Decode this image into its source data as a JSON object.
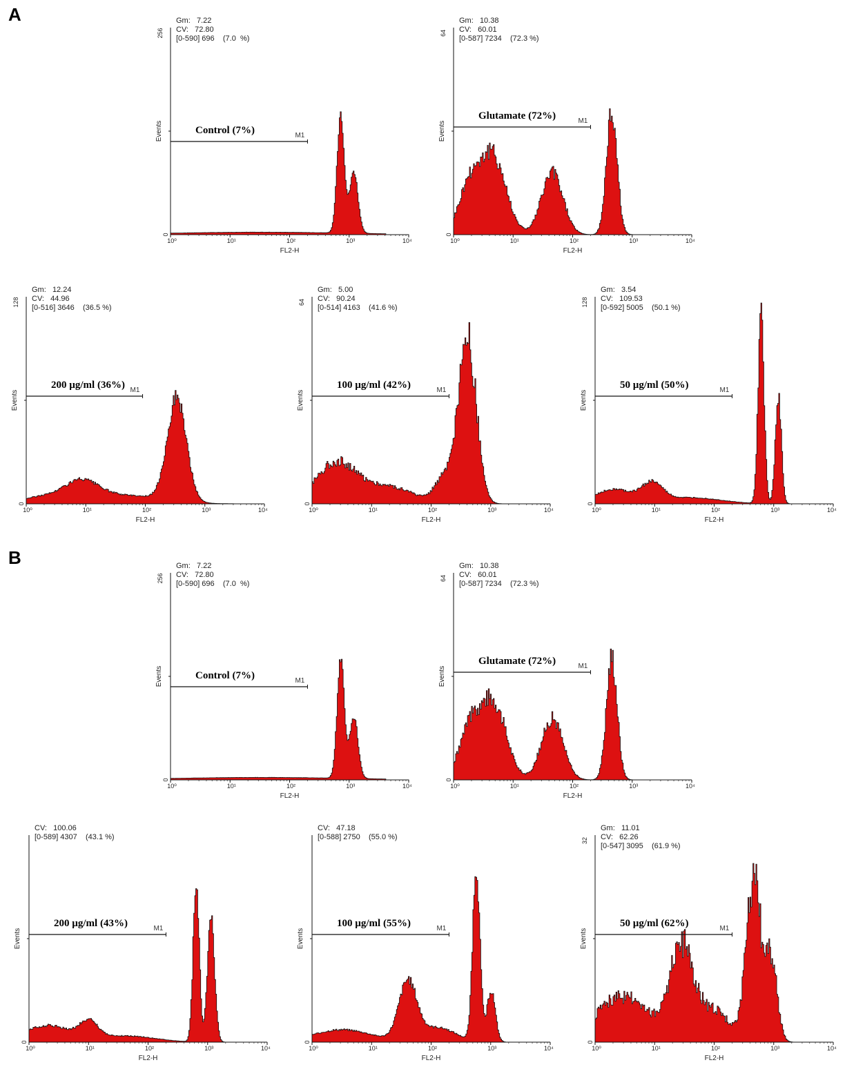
{
  "sections": [
    {
      "label": "A"
    },
    {
      "label": "B"
    }
  ],
  "colors": {
    "fill": "#dd1111",
    "outline": "#111111"
  },
  "chart_data": [
    {
      "type": "area",
      "section": "A",
      "xlabel": "FL2-H",
      "ylabel": "Events",
      "x_scale": "log",
      "xlim": [
        1,
        10000
      ],
      "ylim": [
        0,
        256
      ],
      "y_top_label": "256",
      "y_zero_label": "0",
      "x_ticks": [
        "10⁰",
        "10¹",
        "10²",
        "10³",
        "10⁴"
      ],
      "stats": {
        "gm": "Gm:   7.22",
        "cv": "CV:   72.80",
        "range": "[0-590] 696    (7.0  %)"
      },
      "treatment": "Control (7%)",
      "marker": "M1",
      "marker_range": [
        1,
        200
      ],
      "marker_level": 0.45,
      "peaks": [
        {
          "center": 2.85,
          "width": 0.06,
          "height": 0.58
        },
        {
          "center": 3.07,
          "width": 0.07,
          "height": 0.3
        },
        {
          "center": 1.5,
          "width": 1.5,
          "height": 0.012
        }
      ],
      "noise": 0.04
    },
    {
      "type": "area",
      "section": "A",
      "xlabel": "FL2-H",
      "ylabel": "Events",
      "x_scale": "log",
      "xlim": [
        1,
        10000
      ],
      "ylim": [
        0,
        64
      ],
      "y_top_label": "64",
      "y_zero_label": "0",
      "x_ticks": [
        "10⁰",
        "10¹",
        "10²",
        "10³",
        "10⁴"
      ],
      "stats": {
        "gm": "Gm:   10.38",
        "cv": "CV:   60.01",
        "range": "[0-587] 7234    (72.3 %)"
      },
      "treatment": "Glutamate (72%)",
      "marker": "M1",
      "marker_range": [
        1,
        200
      ],
      "marker_level": 0.52,
      "peaks": [
        {
          "center": 0.25,
          "width": 0.18,
          "height": 0.22
        },
        {
          "center": 0.65,
          "width": 0.22,
          "height": 0.38
        },
        {
          "center": 1.65,
          "width": 0.18,
          "height": 0.3
        },
        {
          "center": 2.65,
          "width": 0.09,
          "height": 0.6
        }
      ],
      "noise": 0.12
    },
    {
      "type": "area",
      "section": "A",
      "xlabel": "FL2-H",
      "ylabel": "Events",
      "x_scale": "log",
      "xlim": [
        1,
        10000
      ],
      "ylim": [
        0,
        128
      ],
      "y_top_label": "128",
      "y_zero_label": "0",
      "x_ticks": [
        "10⁰",
        "10¹",
        "10²",
        "10³",
        "10⁴"
      ],
      "stats": {
        "gm": "Gm:   12.24",
        "cv": "CV:   44.96",
        "range": "[0-516] 3646    (36.5 %)"
      },
      "treatment": "200 µg/ml (36%)",
      "marker": "M1",
      "marker_range": [
        1,
        90
      ],
      "marker_level": 0.52,
      "peaks": [
        {
          "center": 0.9,
          "width": 0.3,
          "height": 0.1
        },
        {
          "center": 1.7,
          "width": 0.6,
          "height": 0.04
        },
        {
          "center": 2.52,
          "width": 0.16,
          "height": 0.5
        },
        {
          "center": 0.2,
          "width": 0.3,
          "height": 0.03
        }
      ],
      "noise": 0.08
    },
    {
      "type": "area",
      "section": "A",
      "xlabel": "FL2-H",
      "ylabel": "Events",
      "x_scale": "log",
      "xlim": [
        1,
        10000
      ],
      "ylim": [
        0,
        64
      ],
      "y_top_label": "64",
      "y_zero_label": "0",
      "x_ticks": [
        "10⁰",
        "10¹",
        "10²",
        "10³",
        "10⁴"
      ],
      "stats": {
        "gm": "Gm:   5.00",
        "cv": "CV:   90.24",
        "range": "[0-514] 4163    (41.6 %)"
      },
      "treatment": "100 µg/ml (42%)",
      "marker": "M1",
      "marker_range": [
        1,
        200
      ],
      "marker_level": 0.52,
      "peaks": [
        {
          "center": 0.4,
          "width": 0.35,
          "height": 0.2
        },
        {
          "center": 1.3,
          "width": 0.4,
          "height": 0.08
        },
        {
          "center": 2.6,
          "width": 0.15,
          "height": 0.8
        },
        {
          "center": 2.2,
          "width": 0.15,
          "height": 0.12
        }
      ],
      "noise": 0.12
    },
    {
      "type": "area",
      "section": "A",
      "xlabel": "FL2-H",
      "ylabel": "Events",
      "x_scale": "log",
      "xlim": [
        1,
        10000
      ],
      "ylim": [
        0,
        128
      ],
      "y_top_label": "128",
      "y_zero_label": "0",
      "x_ticks": [
        "10⁰",
        "10¹",
        "10²",
        "10³",
        "10⁴"
      ],
      "stats": {
        "gm": "Gm:   3.54",
        "cv": "CV:   109.53",
        "range": "[0-592] 5005    (50.1 %)"
      },
      "treatment": "50 µg/ml (50%)",
      "marker": "M1",
      "marker_range": [
        1,
        200
      ],
      "marker_level": 0.52,
      "peaks": [
        {
          "center": 0.3,
          "width": 0.3,
          "height": 0.07
        },
        {
          "center": 0.95,
          "width": 0.18,
          "height": 0.09
        },
        {
          "center": 1.6,
          "width": 0.5,
          "height": 0.03
        },
        {
          "center": 2.78,
          "width": 0.05,
          "height": 0.9
        },
        {
          "center": 3.07,
          "width": 0.05,
          "height": 0.52
        }
      ],
      "noise": 0.08
    },
    {
      "type": "area",
      "section": "B",
      "xlabel": "FL2-H",
      "ylabel": "Events",
      "x_scale": "log",
      "xlim": [
        1,
        10000
      ],
      "ylim": [
        0,
        256
      ],
      "y_top_label": "256",
      "y_zero_label": "0",
      "x_ticks": [
        "10⁰",
        "10¹",
        "10²",
        "10³",
        "10⁴"
      ],
      "stats": {
        "gm": "Gm:   7.22",
        "cv": "CV:   72.80",
        "range": "[0-590] 696    (7.0  %)"
      },
      "treatment": "Control (7%)",
      "marker": "M1",
      "marker_range": [
        1,
        200
      ],
      "marker_level": 0.45,
      "peaks": [
        {
          "center": 2.85,
          "width": 0.06,
          "height": 0.58
        },
        {
          "center": 3.07,
          "width": 0.07,
          "height": 0.3
        },
        {
          "center": 1.5,
          "width": 1.5,
          "height": 0.012
        }
      ],
      "noise": 0.04
    },
    {
      "type": "area",
      "section": "B",
      "xlabel": "FL2-H",
      "ylabel": "Events",
      "x_scale": "log",
      "xlim": [
        1,
        10000
      ],
      "ylim": [
        0,
        64
      ],
      "y_top_label": "64",
      "y_zero_label": "0",
      "x_ticks": [
        "10⁰",
        "10¹",
        "10²",
        "10³",
        "10⁴"
      ],
      "stats": {
        "gm": "Gm:   10.38",
        "cv": "CV:   60.01",
        "range": "[0-587] 7234    (72.3 %)"
      },
      "treatment": "Glutamate (72%)",
      "marker": "M1",
      "marker_range": [
        1,
        200
      ],
      "marker_level": 0.52,
      "peaks": [
        {
          "center": 0.25,
          "width": 0.18,
          "height": 0.22
        },
        {
          "center": 0.65,
          "width": 0.22,
          "height": 0.38
        },
        {
          "center": 1.65,
          "width": 0.18,
          "height": 0.3
        },
        {
          "center": 2.65,
          "width": 0.09,
          "height": 0.6
        }
      ],
      "noise": 0.12
    },
    {
      "type": "area",
      "section": "B",
      "xlabel": "FL2-H",
      "ylabel": "Events",
      "x_scale": "log",
      "xlim": [
        1,
        10000
      ],
      "ylim": [
        0,
        64
      ],
      "y_top_label": "",
      "y_zero_label": "0",
      "x_ticks": [
        "10⁰",
        "10¹",
        "10²",
        "10³",
        "10⁴"
      ],
      "stats": {
        "gm": "",
        "cv": "CV:   100.06",
        "range": "[0-589] 4307    (43.1 %)"
      },
      "treatment": "200 µg/ml (43%)",
      "marker": "M1",
      "marker_range": [
        1,
        200
      ],
      "marker_level": 0.52,
      "peaks": [
        {
          "center": 0.3,
          "width": 0.4,
          "height": 0.08
        },
        {
          "center": 1.0,
          "width": 0.15,
          "height": 0.08
        },
        {
          "center": 1.6,
          "width": 0.5,
          "height": 0.03
        },
        {
          "center": 2.8,
          "width": 0.05,
          "height": 0.8
        },
        {
          "center": 3.05,
          "width": 0.06,
          "height": 0.6
        }
      ],
      "noise": 0.08
    },
    {
      "type": "area",
      "section": "B",
      "xlabel": "FL2-H",
      "ylabel": "Events",
      "x_scale": "log",
      "xlim": [
        1,
        10000
      ],
      "ylim": [
        0,
        64
      ],
      "y_top_label": "",
      "y_zero_label": "0",
      "x_ticks": [
        "10⁰",
        "10¹",
        "10²",
        "10³",
        "10⁴"
      ],
      "stats": {
        "gm": "",
        "cv": "CV:   47.18",
        "range": "[0-588] 2750    (55.0 %)"
      },
      "treatment": "100 µg/ml (55%)",
      "marker": "M1",
      "marker_range": [
        1,
        200
      ],
      "marker_level": 0.52,
      "peaks": [
        {
          "center": 0.5,
          "width": 0.5,
          "height": 0.06
        },
        {
          "center": 1.6,
          "width": 0.15,
          "height": 0.28
        },
        {
          "center": 2.75,
          "width": 0.06,
          "height": 0.85
        },
        {
          "center": 3.0,
          "width": 0.07,
          "height": 0.25
        },
        {
          "center": 2.1,
          "width": 0.3,
          "height": 0.07
        }
      ],
      "noise": 0.08
    },
    {
      "type": "area",
      "section": "B",
      "xlabel": "FL2-H",
      "ylabel": "Events",
      "x_scale": "log",
      "xlim": [
        1,
        10000
      ],
      "ylim": [
        0,
        32
      ],
      "y_top_label": "32",
      "y_zero_label": "0",
      "x_ticks": [
        "10⁰",
        "10¹",
        "10²",
        "10³",
        "10⁴"
      ],
      "stats": {
        "gm": "Gm:   11.01",
        "cv": "CV:   62.26",
        "range": "[0-547] 3095    (61.9 %)"
      },
      "treatment": "50 µg/ml (62%)",
      "marker": "M1",
      "marker_range": [
        1,
        200
      ],
      "marker_level": 0.52,
      "peaks": [
        {
          "center": 0.45,
          "width": 0.45,
          "height": 0.22
        },
        {
          "center": 1.45,
          "width": 0.2,
          "height": 0.45
        },
        {
          "center": 2.65,
          "width": 0.12,
          "height": 0.8
        },
        {
          "center": 2.95,
          "width": 0.1,
          "height": 0.4
        },
        {
          "center": 2.0,
          "width": 0.25,
          "height": 0.15
        }
      ],
      "noise": 0.16
    }
  ]
}
